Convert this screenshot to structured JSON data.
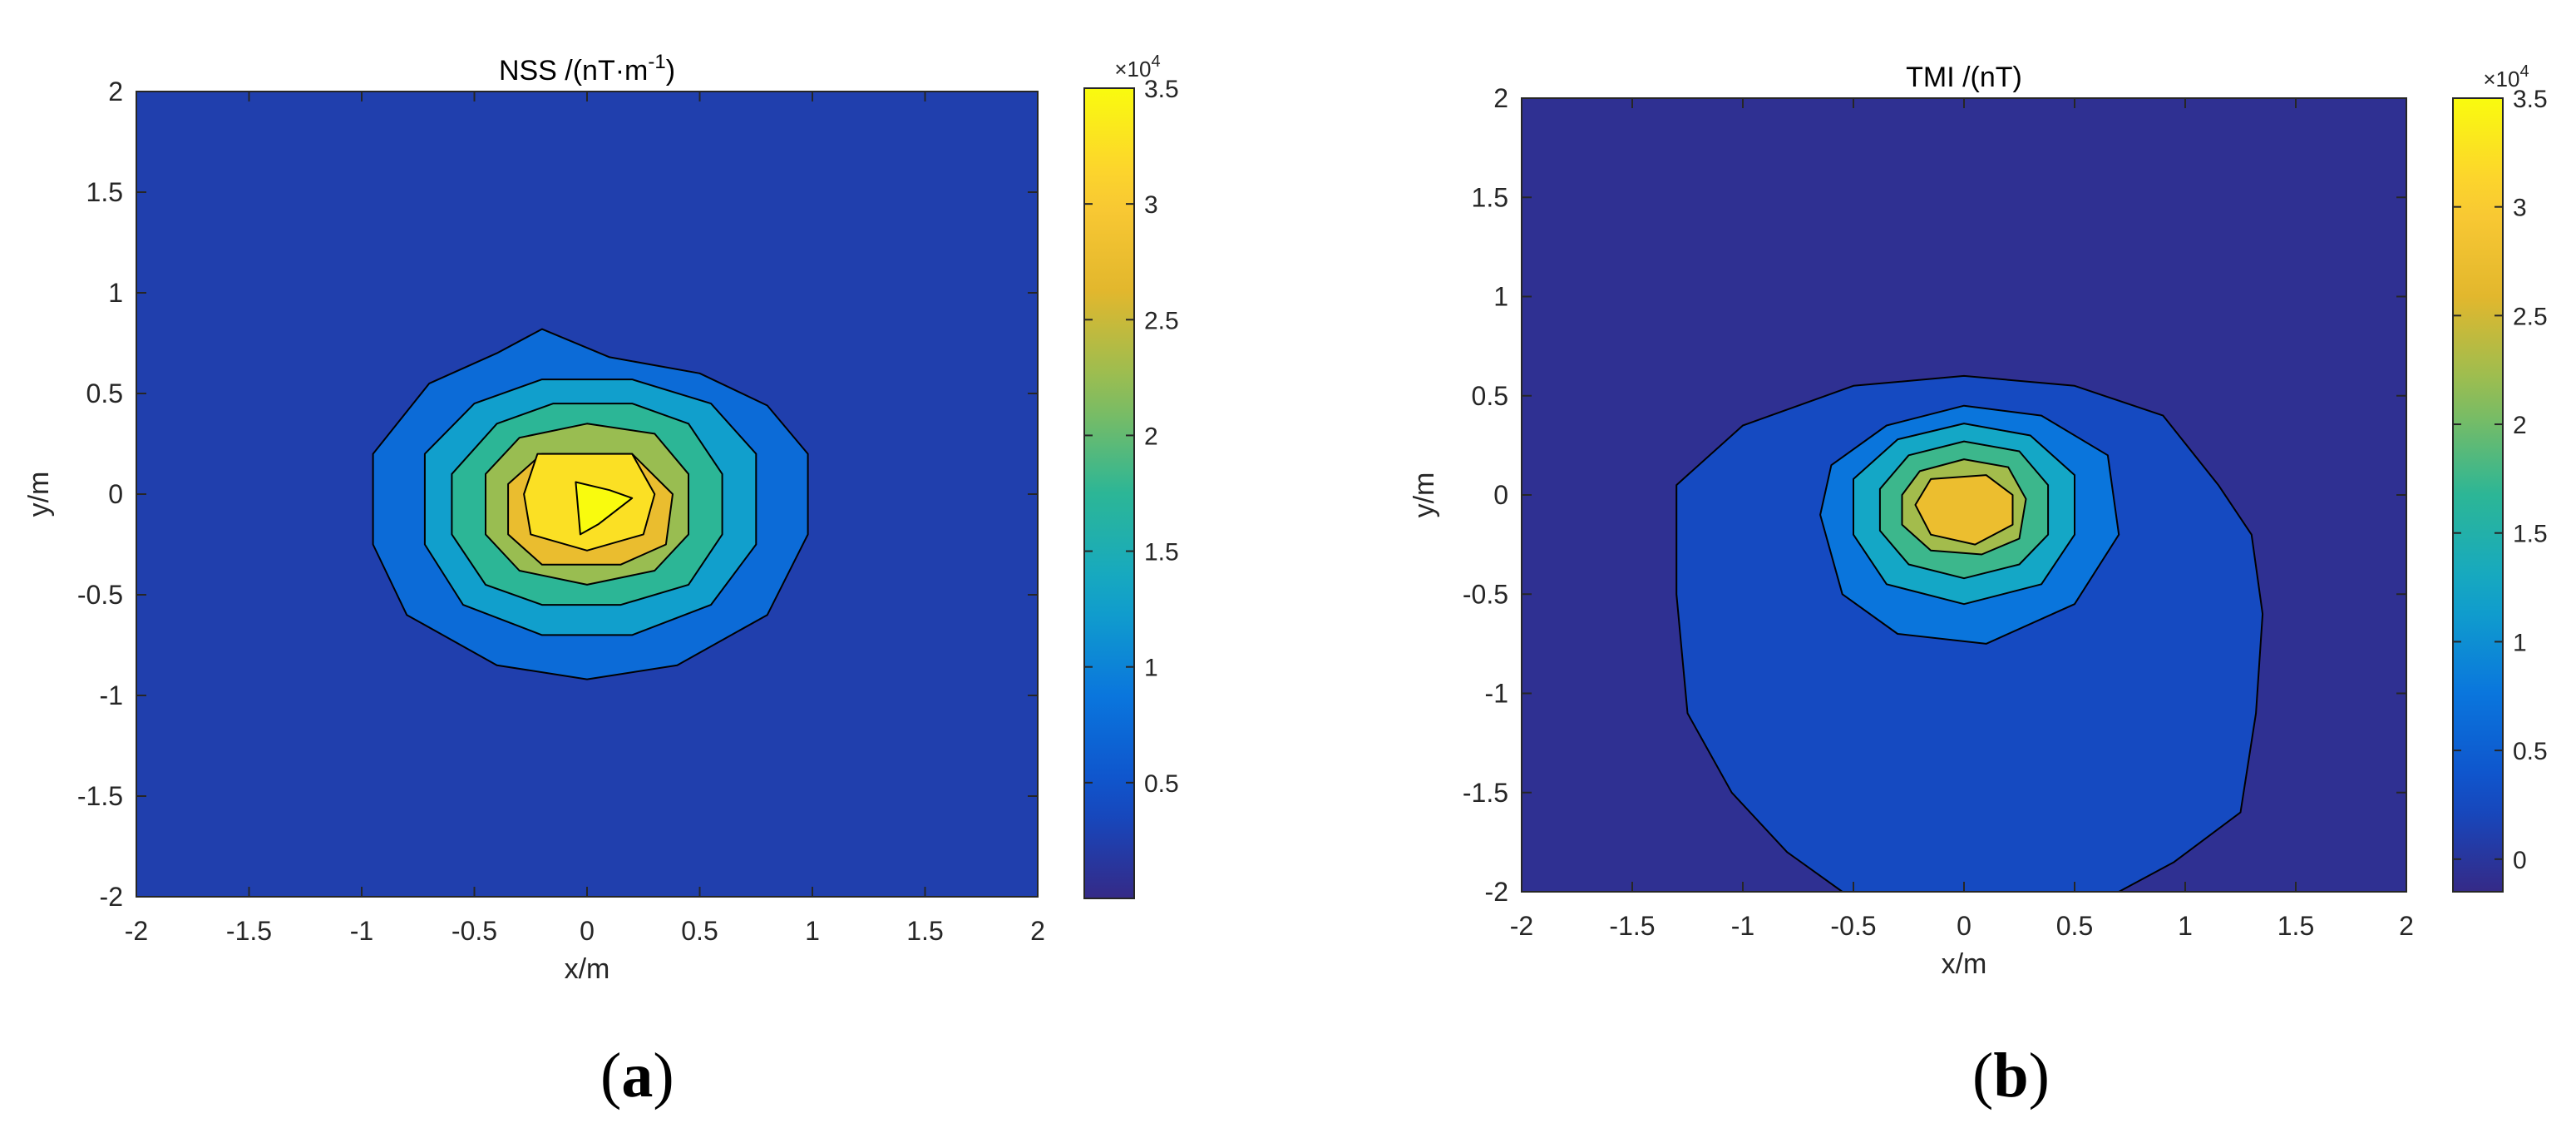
{
  "chart_data": [
    {
      "type": "contour",
      "panel_label": "a",
      "title": "NSS /(nT·m",
      "title_exponent": "-1",
      "title_suffix": ")",
      "xlabel": "x/m",
      "ylabel": "y/m",
      "xlim": [
        -2,
        2
      ],
      "ylim": [
        -2,
        2
      ],
      "xticks": [
        -2,
        -1.5,
        -1,
        -0.5,
        0,
        0.5,
        1,
        1.5,
        2
      ],
      "yticks": [
        -2,
        -1.5,
        -1,
        -0.5,
        0,
        0.5,
        1,
        1.5,
        2
      ],
      "colorbar": {
        "colormap": "parula",
        "clim": [
          0,
          35000
        ],
        "ticks": [
          0.5,
          1,
          1.5,
          2,
          2.5,
          3,
          3.5
        ],
        "tick_labels": [
          "0.5",
          "1",
          "1.5",
          "2",
          "2.5",
          "3",
          "3.5"
        ],
        "multiplier": "×10",
        "multiplier_exponent": "4"
      },
      "contour_levels": [
        0,
        5000,
        10000,
        15000,
        20000,
        25000,
        30000,
        35000
      ],
      "peak": {
        "x": 0.05,
        "y": -0.05,
        "value": 35000
      },
      "contours": [
        {
          "level": 5000,
          "points": [
            [
              -0.2,
              0.82
            ],
            [
              0.1,
              0.68
            ],
            [
              0.5,
              0.6
            ],
            [
              0.8,
              0.44
            ],
            [
              0.98,
              0.2
            ],
            [
              0.98,
              -0.2
            ],
            [
              0.8,
              -0.6
            ],
            [
              0.4,
              -0.85
            ],
            [
              0,
              -0.92
            ],
            [
              -0.4,
              -0.85
            ],
            [
              -0.8,
              -0.6
            ],
            [
              -0.95,
              -0.25
            ],
            [
              -0.95,
              0.2
            ],
            [
              -0.7,
              0.55
            ],
            [
              -0.4,
              0.7
            ]
          ]
        },
        {
          "level": 10000,
          "points": [
            [
              -0.5,
              0.45
            ],
            [
              -0.2,
              0.57
            ],
            [
              0.2,
              0.57
            ],
            [
              0.55,
              0.45
            ],
            [
              0.75,
              0.2
            ],
            [
              0.75,
              -0.25
            ],
            [
              0.55,
              -0.55
            ],
            [
              0.2,
              -0.7
            ],
            [
              -0.2,
              -0.7
            ],
            [
              -0.55,
              -0.55
            ],
            [
              -0.72,
              -0.25
            ],
            [
              -0.72,
              0.2
            ]
          ]
        },
        {
          "level": 15000,
          "points": [
            [
              -0.4,
              0.35
            ],
            [
              -0.15,
              0.45
            ],
            [
              0.2,
              0.45
            ],
            [
              0.45,
              0.35
            ],
            [
              0.6,
              0.1
            ],
            [
              0.6,
              -0.2
            ],
            [
              0.45,
              -0.45
            ],
            [
              0.15,
              -0.55
            ],
            [
              -0.2,
              -0.55
            ],
            [
              -0.45,
              -0.45
            ],
            [
              -0.6,
              -0.2
            ],
            [
              -0.6,
              0.1
            ]
          ]
        },
        {
          "level": 20000,
          "points": [
            [
              -0.3,
              0.28
            ],
            [
              0,
              0.35
            ],
            [
              0.3,
              0.3
            ],
            [
              0.45,
              0.1
            ],
            [
              0.45,
              -0.2
            ],
            [
              0.3,
              -0.38
            ],
            [
              0,
              -0.45
            ],
            [
              -0.3,
              -0.38
            ],
            [
              -0.45,
              -0.2
            ],
            [
              -0.45,
              0.1
            ]
          ]
        },
        {
          "level": 25000,
          "points": [
            [
              -0.2,
              0.2
            ],
            [
              0.2,
              0.2
            ],
            [
              0.38,
              0
            ],
            [
              0.35,
              -0.25
            ],
            [
              0.15,
              -0.35
            ],
            [
              -0.2,
              -0.35
            ],
            [
              -0.35,
              -0.2
            ],
            [
              -0.35,
              0.05
            ]
          ]
        },
        {
          "level": 30000,
          "points": [
            [
              -0.22,
              0.2
            ],
            [
              0.2,
              0.2
            ],
            [
              0.3,
              0
            ],
            [
              0.25,
              -0.2
            ],
            [
              0,
              -0.28
            ],
            [
              -0.25,
              -0.2
            ],
            [
              -0.28,
              0
            ]
          ]
        },
        {
          "level": 34000,
          "points": [
            [
              -0.05,
              0.06
            ],
            [
              0.1,
              0.02
            ],
            [
              0.2,
              -0.02
            ],
            [
              0.05,
              -0.15
            ],
            [
              -0.03,
              -0.2
            ]
          ]
        }
      ]
    },
    {
      "type": "contour",
      "panel_label": "b",
      "title": "TMI /(nT)",
      "xlabel": "x/m",
      "ylabel": "y/m",
      "xlim": [
        -2,
        2
      ],
      "ylim": [
        -2,
        2
      ],
      "xticks": [
        -2,
        -1.5,
        -1,
        -0.5,
        0,
        0.5,
        1,
        1.5,
        2
      ],
      "yticks": [
        -2,
        -1.5,
        -1,
        -0.5,
        0,
        0.5,
        1,
        1.5,
        2
      ],
      "colorbar": {
        "colormap": "parula",
        "clim": [
          -1500,
          35000
        ],
        "ticks": [
          0,
          0.5,
          1,
          1.5,
          2,
          2.5,
          3,
          3.5
        ],
        "tick_labels": [
          "0",
          "0.5",
          "1",
          "1.5",
          "2",
          "2.5",
          "3",
          "3.5"
        ],
        "multiplier": "×10",
        "multiplier_exponent": "4"
      },
      "contour_levels": [
        -1500,
        0,
        5000,
        10000,
        15000,
        20000,
        25000,
        30000
      ],
      "peak": {
        "x": 0,
        "y": -0.05,
        "value": 30000
      },
      "contours": [
        {
          "level": 0,
          "points": [
            [
              -0.5,
              0.55
            ],
            [
              0,
              0.6
            ],
            [
              0.5,
              0.55
            ],
            [
              0.9,
              0.4
            ],
            [
              1.15,
              0.05
            ],
            [
              1.3,
              -0.2
            ],
            [
              1.35,
              -0.6
            ],
            [
              1.32,
              -1.1
            ],
            [
              1.25,
              -1.6
            ],
            [
              0.95,
              -1.85
            ],
            [
              0.7,
              -2
            ],
            [
              -0.55,
              -2
            ],
            [
              -0.8,
              -1.8
            ],
            [
              -1.05,
              -1.5
            ],
            [
              -1.25,
              -1.1
            ],
            [
              -1.3,
              -0.5
            ],
            [
              -1.3,
              0.05
            ],
            [
              -1.0,
              0.35
            ]
          ]
        },
        {
          "level": 5000,
          "points": [
            [
              -0.35,
              0.35
            ],
            [
              0,
              0.45
            ],
            [
              0.35,
              0.4
            ],
            [
              0.65,
              0.2
            ],
            [
              0.7,
              -0.2
            ],
            [
              0.5,
              -0.55
            ],
            [
              0.1,
              -0.75
            ],
            [
              -0.3,
              -0.7
            ],
            [
              -0.55,
              -0.5
            ],
            [
              -0.65,
              -0.1
            ],
            [
              -0.6,
              0.15
            ]
          ]
        },
        {
          "level": 10000,
          "points": [
            [
              -0.3,
              0.28
            ],
            [
              0,
              0.36
            ],
            [
              0.3,
              0.3
            ],
            [
              0.5,
              0.1
            ],
            [
              0.5,
              -0.2
            ],
            [
              0.35,
              -0.45
            ],
            [
              0,
              -0.55
            ],
            [
              -0.35,
              -0.45
            ],
            [
              -0.5,
              -0.2
            ],
            [
              -0.5,
              0.08
            ]
          ]
        },
        {
          "level": 15000,
          "points": [
            [
              -0.25,
              0.2
            ],
            [
              0,
              0.27
            ],
            [
              0.25,
              0.22
            ],
            [
              0.38,
              0.05
            ],
            [
              0.38,
              -0.2
            ],
            [
              0.25,
              -0.35
            ],
            [
              0,
              -0.42
            ],
            [
              -0.25,
              -0.35
            ],
            [
              -0.38,
              -0.18
            ],
            [
              -0.38,
              0.03
            ]
          ]
        },
        {
          "level": 20000,
          "points": [
            [
              -0.2,
              0.12
            ],
            [
              0,
              0.18
            ],
            [
              0.2,
              0.14
            ],
            [
              0.28,
              -0.02
            ],
            [
              0.25,
              -0.22
            ],
            [
              0.08,
              -0.3
            ],
            [
              -0.15,
              -0.28
            ],
            [
              -0.28,
              -0.15
            ],
            [
              -0.28,
              0
            ]
          ]
        },
        {
          "level": 25000,
          "points": [
            [
              -0.15,
              0.08
            ],
            [
              0.1,
              0.1
            ],
            [
              0.22,
              0
            ],
            [
              0.22,
              -0.15
            ],
            [
              0.05,
              -0.25
            ],
            [
              -0.15,
              -0.2
            ],
            [
              -0.22,
              -0.05
            ]
          ]
        }
      ]
    }
  ]
}
